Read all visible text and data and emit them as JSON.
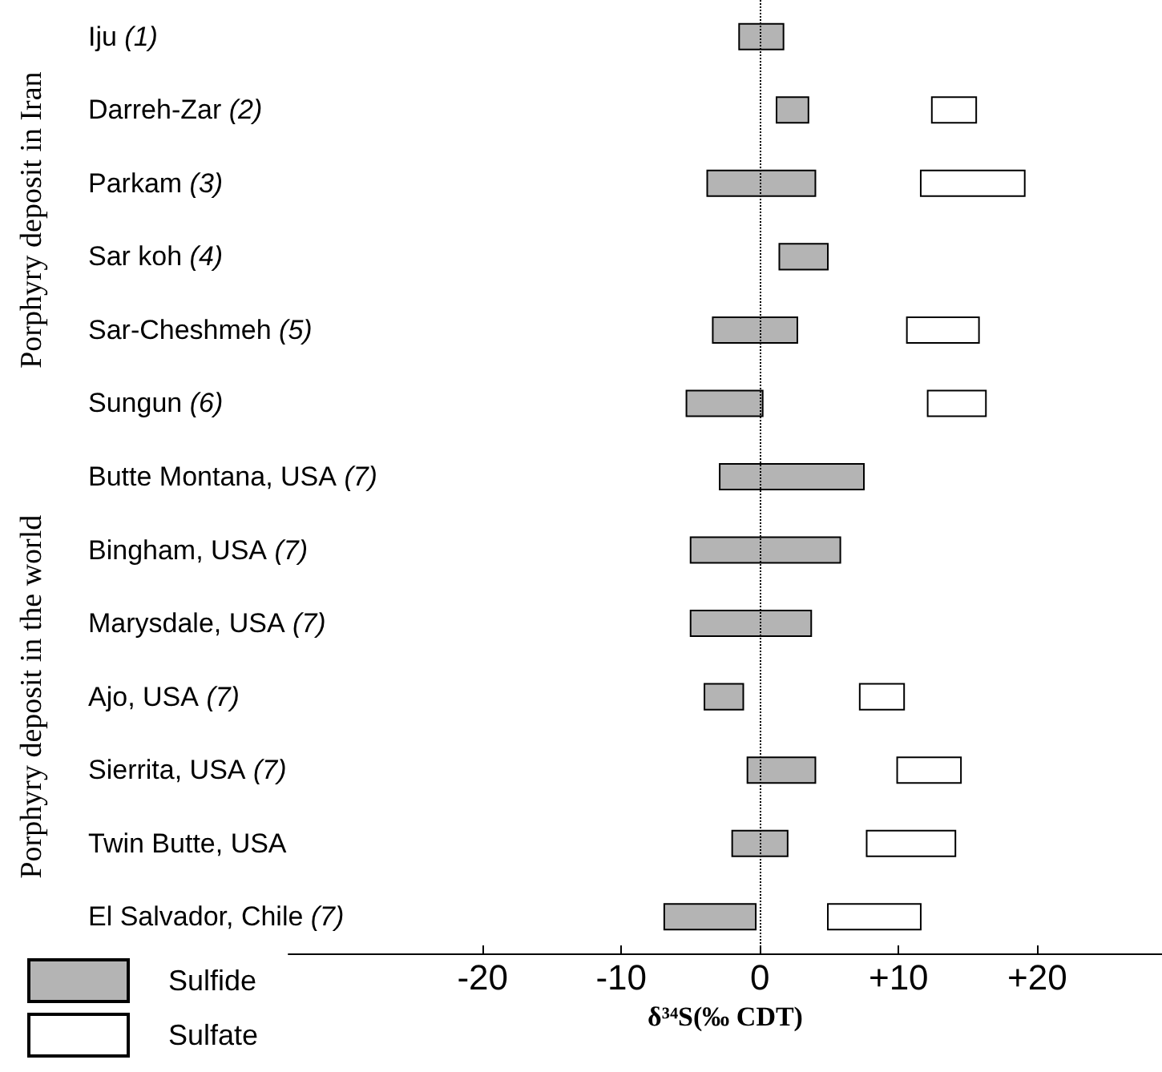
{
  "chart_data": {
    "type": "bar",
    "orientation": "horizontal",
    "xlabel": "δ³⁴S(‰ CDT)",
    "categories": [
      "Iju (1)",
      "Darreh-Zar (2)",
      "Parkam (3)",
      "Sar koh (4)",
      "Sar-Cheshmeh (5)",
      "Sungun (6)",
      "Butte Montana, USA (7)",
      "Bingham, USA (7)",
      "Marysdale, USA (7)",
      "Ajo, USA (7)",
      "Sierrita, USA (7)",
      "Twin Butte, USA",
      "El Salvador, Chile (7)"
    ],
    "series": [
      {
        "name": "Sulfide",
        "color": "#b4b4b4",
        "base": [
          -1.5,
          1.2,
          -3.8,
          1.4,
          -3.4,
          -5.3,
          -2.9,
          -5.0,
          -5.0,
          -4.0,
          -0.9,
          -2.0,
          -6.9
        ],
        "values": [
          3.2,
          2.3,
          7.8,
          3.5,
          6.1,
          5.5,
          10.4,
          10.8,
          8.7,
          2.8,
          4.9,
          4.0,
          6.6
        ]
      },
      {
        "name": "Sulfate",
        "color": "#ffffff",
        "base": [
          null,
          12.4,
          11.6,
          null,
          10.6,
          12.1,
          null,
          null,
          null,
          7.2,
          9.9,
          7.7,
          4.9
        ],
        "values": [
          null,
          3.2,
          7.5,
          null,
          5.2,
          4.2,
          null,
          null,
          null,
          3.2,
          4.6,
          6.4,
          6.7
        ]
      }
    ],
    "xlim": [
      -34,
      29
    ],
    "xticks": [
      -20,
      -10,
      0,
      {
        "value": 10,
        "label": "+10"
      },
      {
        "value": 20,
        "label": "+20"
      }
    ],
    "ref_lines": [
      {
        "axis": "x",
        "value": 0,
        "line_style": "dotted"
      }
    ],
    "annotations": [
      "Porphyry deposit in Iran",
      "Porphyry deposit in the world"
    ],
    "legend": "bottom left",
    "grid": false
  }
}
